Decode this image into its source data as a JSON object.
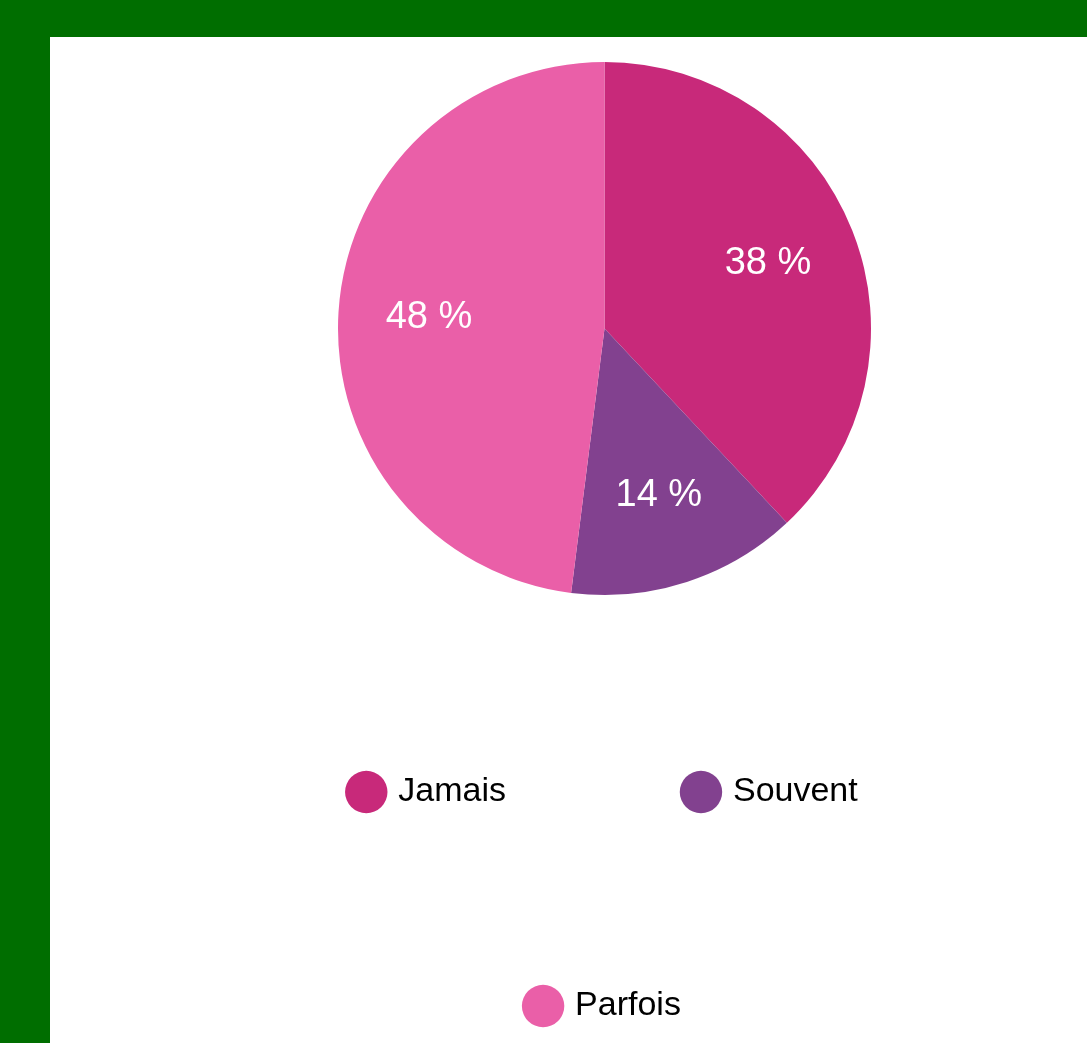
{
  "chart_data": {
    "type": "pie",
    "categories": [
      "Jamais",
      "Souvent",
      "Parfois"
    ],
    "values": [
      38,
      14,
      48
    ],
    "colors": [
      "#c8297a",
      "#82418f",
      "#ea5fa8"
    ],
    "value_labels": [
      "38 %",
      "14 %",
      "48 %"
    ],
    "legend": "bottom"
  }
}
